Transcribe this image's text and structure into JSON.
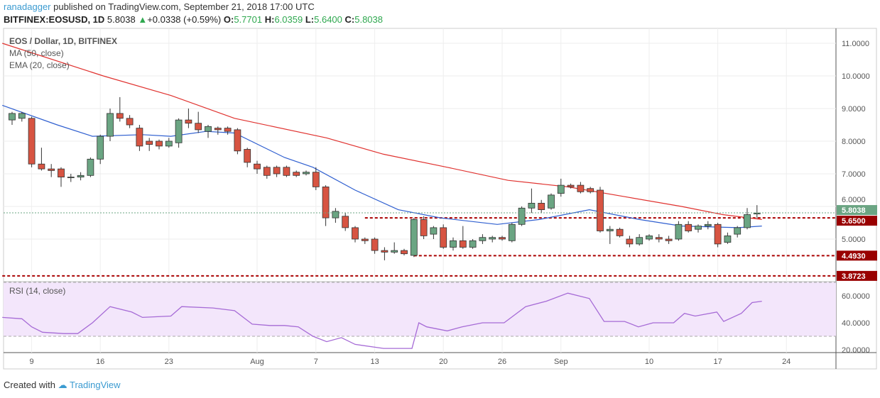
{
  "header": {
    "user": "ranadagger",
    "published": "published on TradingView.com, September 21, 2018 17:00 UTC",
    "symbol": "BITFINEX:EOSUSD, 1D",
    "last": "5.8038",
    "change": "+0.0338 (+0.59%)",
    "o_label": "O:",
    "o": "5.7701",
    "h_label": "H:",
    "h": "6.0359",
    "l_label": "L:",
    "l": "5.6400",
    "c_label": "C:",
    "c": "5.8038"
  },
  "legend": {
    "title": "EOS / Dollar, 1D, BITFINEX",
    "ma": "MA (50, close)",
    "ema": "EMA (20, close)",
    "rsi": "RSI (14, close)"
  },
  "footer": {
    "created": "Created with",
    "brand": "TradingView"
  },
  "colors": {
    "up": "#6ba583",
    "down": "#d75442",
    "ma": "#e0322f",
    "ema": "#2f5fd0",
    "rsi": "#a66bd6"
  },
  "chart_data": {
    "type": "candlestick",
    "price_ticks": [
      "11.0000",
      "10.0000",
      "9.0000",
      "8.0000",
      "7.0000",
      "6.0000",
      "5.0000"
    ],
    "price_tick_values": [
      11,
      10,
      9,
      8,
      7,
      6,
      5
    ],
    "ylim": [
      3.8,
      11.5
    ],
    "x_ticks": [
      {
        "label": "9",
        "day": 2
      },
      {
        "label": "16",
        "day": 9
      },
      {
        "label": "23",
        "day": 16
      },
      {
        "label": "Aug",
        "day": 25
      },
      {
        "label": "7",
        "day": 31
      },
      {
        "label": "13",
        "day": 37
      },
      {
        "label": "20",
        "day": 44
      },
      {
        "label": "26",
        "day": 50
      },
      {
        "label": "Sep",
        "day": 56
      },
      {
        "label": "10",
        "day": 65
      },
      {
        "label": "17",
        "day": 72
      },
      {
        "label": "24",
        "day": 79
      }
    ],
    "xlim": [
      -1,
      84
    ],
    "candles": [
      [
        8.65,
        8.9,
        8.5,
        8.85
      ],
      [
        8.7,
        8.9,
        8.6,
        8.85
      ],
      [
        8.7,
        8.75,
        7.2,
        7.3
      ],
      [
        7.3,
        7.8,
        7.1,
        7.15
      ],
      [
        7.15,
        7.3,
        6.9,
        7.1
      ],
      [
        7.15,
        7.2,
        6.6,
        6.9
      ],
      [
        6.9,
        7.0,
        6.75,
        6.9
      ],
      [
        6.9,
        7.05,
        6.8,
        6.95
      ],
      [
        6.95,
        7.5,
        6.9,
        7.45
      ],
      [
        7.45,
        8.2,
        7.3,
        8.15
      ],
      [
        8.15,
        9.0,
        8.0,
        8.85
      ],
      [
        8.85,
        9.35,
        8.6,
        8.7
      ],
      [
        8.7,
        8.8,
        8.4,
        8.5
      ],
      [
        8.4,
        8.5,
        7.7,
        7.85
      ],
      [
        8.0,
        8.1,
        7.7,
        7.9
      ],
      [
        8.0,
        8.05,
        7.75,
        7.85
      ],
      [
        7.85,
        8.1,
        7.8,
        8.0
      ],
      [
        7.95,
        8.7,
        7.8,
        8.65
      ],
      [
        8.65,
        9.0,
        8.4,
        8.55
      ],
      [
        8.55,
        8.9,
        8.25,
        8.35
      ],
      [
        8.3,
        8.5,
        8.1,
        8.45
      ],
      [
        8.4,
        8.45,
        8.2,
        8.35
      ],
      [
        8.4,
        8.45,
        8.2,
        8.3
      ],
      [
        8.35,
        8.4,
        7.6,
        7.7
      ],
      [
        7.75,
        7.8,
        7.2,
        7.35
      ],
      [
        7.3,
        7.4,
        7.0,
        7.15
      ],
      [
        7.2,
        7.25,
        6.85,
        6.95
      ],
      [
        7.2,
        7.25,
        6.9,
        7.0
      ],
      [
        7.2,
        7.25,
        6.9,
        6.95
      ],
      [
        7.05,
        7.1,
        6.9,
        6.95
      ],
      [
        7.0,
        7.1,
        6.95,
        7.05
      ],
      [
        7.05,
        7.2,
        6.5,
        6.6
      ],
      [
        6.6,
        6.65,
        5.4,
        5.65
      ],
      [
        5.65,
        5.95,
        5.5,
        5.85
      ],
      [
        5.7,
        5.8,
        5.25,
        5.35
      ],
      [
        5.35,
        5.4,
        4.9,
        5.0
      ],
      [
        5.0,
        5.05,
        4.85,
        4.95
      ],
      [
        5.0,
        5.05,
        4.55,
        4.65
      ],
      [
        4.65,
        4.75,
        4.35,
        4.6
      ],
      [
        4.6,
        4.9,
        4.55,
        4.65
      ],
      [
        4.65,
        4.7,
        4.5,
        4.55
      ],
      [
        4.5,
        5.65,
        4.45,
        5.6
      ],
      [
        5.6,
        5.7,
        5.0,
        5.1
      ],
      [
        5.15,
        5.4,
        5.0,
        5.35
      ],
      [
        5.35,
        5.45,
        4.7,
        4.75
      ],
      [
        4.75,
        5.05,
        4.65,
        4.95
      ],
      [
        4.95,
        5.4,
        4.7,
        4.75
      ],
      [
        4.75,
        5.0,
        4.7,
        4.95
      ],
      [
        4.95,
        5.15,
        4.85,
        5.05
      ],
      [
        5.0,
        5.1,
        4.9,
        5.05
      ],
      [
        5.05,
        5.1,
        4.95,
        5.0
      ],
      [
        4.95,
        5.5,
        4.9,
        5.45
      ],
      [
        5.45,
        6.0,
        5.4,
        5.95
      ],
      [
        5.95,
        6.55,
        5.8,
        6.1
      ],
      [
        6.1,
        6.2,
        5.8,
        5.9
      ],
      [
        5.95,
        6.4,
        5.9,
        6.35
      ],
      [
        6.4,
        6.85,
        6.3,
        6.65
      ],
      [
        6.65,
        6.7,
        6.55,
        6.6
      ],
      [
        6.65,
        6.75,
        6.4,
        6.45
      ],
      [
        6.55,
        6.6,
        6.4,
        6.45
      ],
      [
        6.5,
        6.6,
        5.2,
        5.25
      ],
      [
        5.25,
        5.4,
        4.85,
        5.3
      ],
      [
        5.3,
        5.35,
        5.05,
        5.1
      ],
      [
        5.0,
        5.1,
        4.75,
        4.85
      ],
      [
        4.85,
        5.15,
        4.8,
        5.05
      ],
      [
        5.0,
        5.15,
        4.95,
        5.1
      ],
      [
        5.05,
        5.15,
        4.9,
        5.0
      ],
      [
        5.0,
        5.1,
        4.85,
        4.95
      ],
      [
        5.0,
        5.55,
        4.95,
        5.45
      ],
      [
        5.45,
        5.55,
        5.2,
        5.25
      ],
      [
        5.3,
        5.45,
        5.2,
        5.4
      ],
      [
        5.4,
        5.55,
        5.3,
        5.45
      ],
      [
        5.45,
        5.5,
        4.75,
        4.85
      ],
      [
        4.9,
        5.2,
        4.85,
        5.1
      ],
      [
        5.15,
        5.4,
        5.05,
        5.35
      ],
      [
        5.35,
        5.95,
        5.3,
        5.75
      ],
      [
        5.77,
        6.04,
        5.64,
        5.8
      ]
    ],
    "ma50": [
      [
        -1,
        11.0
      ],
      [
        9.3,
        10.0
      ],
      [
        16.2,
        9.4
      ],
      [
        22.7,
        8.7
      ],
      [
        32.1,
        8.1
      ],
      [
        37.9,
        7.6
      ],
      [
        44.4,
        7.2
      ],
      [
        50.6,
        6.8
      ],
      [
        56.7,
        6.6
      ],
      [
        62.5,
        6.3
      ],
      [
        68.3,
        6.0
      ],
      [
        72.5,
        5.75
      ],
      [
        76.5,
        5.6
      ]
    ],
    "ema20": [
      [
        -1,
        9.1
      ],
      [
        4.6,
        8.5
      ],
      [
        8.2,
        8.15
      ],
      [
        13.3,
        8.2
      ],
      [
        16.2,
        8.15
      ],
      [
        19.8,
        8.3
      ],
      [
        22.7,
        8.25
      ],
      [
        27.8,
        7.5
      ],
      [
        30.7,
        7.2
      ],
      [
        35,
        6.5
      ],
      [
        39.4,
        5.9
      ],
      [
        43.7,
        5.65
      ],
      [
        49.5,
        5.45
      ],
      [
        53.8,
        5.6
      ],
      [
        58.9,
        5.9
      ],
      [
        64,
        5.6
      ],
      [
        68.3,
        5.4
      ],
      [
        74.1,
        5.35
      ],
      [
        76.5,
        5.4
      ]
    ],
    "levels": [
      {
        "value": 5.65,
        "label": "5.6500",
        "from_day": 36
      },
      {
        "value": 4.493,
        "label": "4.4930",
        "from_day": 41
      },
      {
        "value": 3.8723,
        "label": "3.8723",
        "from_day": -1
      }
    ],
    "last_price": {
      "value": 5.8038,
      "label": "5.8038"
    },
    "rsi": {
      "ticks": [
        "60.0000",
        "40.0000",
        "20.0000"
      ],
      "tick_values": [
        60,
        40,
        20
      ],
      "ylim": [
        17,
        71
      ],
      "band": [
        30,
        70
      ],
      "points": [
        [
          -1,
          44
        ],
        [
          1,
          43
        ],
        [
          2,
          37
        ],
        [
          3.1,
          33
        ],
        [
          5.3,
          32
        ],
        [
          6.7,
          32
        ],
        [
          8.2,
          40
        ],
        [
          10,
          52
        ],
        [
          12.2,
          48
        ],
        [
          13.3,
          44
        ],
        [
          16.2,
          45
        ],
        [
          17.3,
          52
        ],
        [
          20.5,
          51
        ],
        [
          22.7,
          49
        ],
        [
          24.5,
          39
        ],
        [
          26.3,
          38
        ],
        [
          27.8,
          38
        ],
        [
          29.2,
          37
        ],
        [
          30.7,
          30
        ],
        [
          32.1,
          26
        ],
        [
          33.6,
          29
        ],
        [
          35,
          24
        ],
        [
          37.9,
          21
        ],
        [
          40.8,
          21
        ],
        [
          41.5,
          40
        ],
        [
          42.3,
          37
        ],
        [
          44.4,
          34
        ],
        [
          45.9,
          37
        ],
        [
          48,
          40
        ],
        [
          50.2,
          40
        ],
        [
          52.4,
          52
        ],
        [
          54.5,
          56
        ],
        [
          56.7,
          62
        ],
        [
          58.9,
          58
        ],
        [
          60.4,
          41
        ],
        [
          62.5,
          41
        ],
        [
          63.9,
          37
        ],
        [
          65.4,
          40
        ],
        [
          67.5,
          40
        ],
        [
          68.6,
          47
        ],
        [
          69.7,
          45
        ],
        [
          71.9,
          48
        ],
        [
          72.6,
          41
        ],
        [
          74.4,
          47
        ],
        [
          75.5,
          55
        ],
        [
          76.5,
          56
        ]
      ]
    }
  }
}
